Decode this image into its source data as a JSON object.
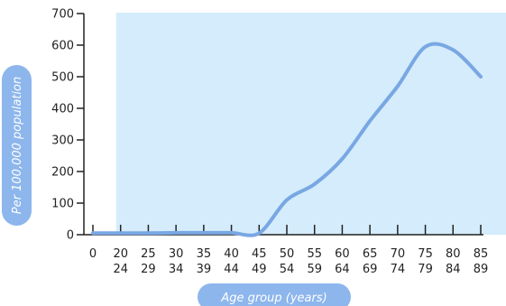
{
  "chart_data": {
    "type": "line",
    "title": "",
    "xlabel": "Age group (years)",
    "ylabel": "Per 100,000 population",
    "ylim": [
      0,
      700
    ],
    "yticks": [
      "0",
      "100",
      "200",
      "300",
      "400",
      "500",
      "600",
      "700"
    ],
    "categories": [
      {
        "top": "0",
        "bottom": ""
      },
      {
        "top": "20",
        "bottom": "24"
      },
      {
        "top": "25",
        "bottom": "29"
      },
      {
        "top": "30",
        "bottom": "34"
      },
      {
        "top": "35",
        "bottom": "39"
      },
      {
        "top": "40",
        "bottom": "44"
      },
      {
        "top": "45",
        "bottom": "49"
      },
      {
        "top": "50",
        "bottom": "54"
      },
      {
        "top": "55",
        "bottom": "59"
      },
      {
        "top": "60",
        "bottom": "64"
      },
      {
        "top": "65",
        "bottom": "69"
      },
      {
        "top": "70",
        "bottom": "74"
      },
      {
        "top": "75",
        "bottom": "79"
      },
      {
        "top": "80",
        "bottom": "84"
      },
      {
        "top": "85",
        "bottom": "89"
      }
    ],
    "series": [
      {
        "values": [
          5,
          5,
          5,
          6,
          6,
          6,
          5,
          110,
          160,
          240,
          360,
          470,
          595,
          585,
          500
        ]
      }
    ],
    "shaded_region_from": "20",
    "grid": false,
    "colors": {
      "line": "#79a7e3",
      "shade": "#d4ecfb",
      "pill": "#8db6ec",
      "axis": "#222222"
    }
  }
}
